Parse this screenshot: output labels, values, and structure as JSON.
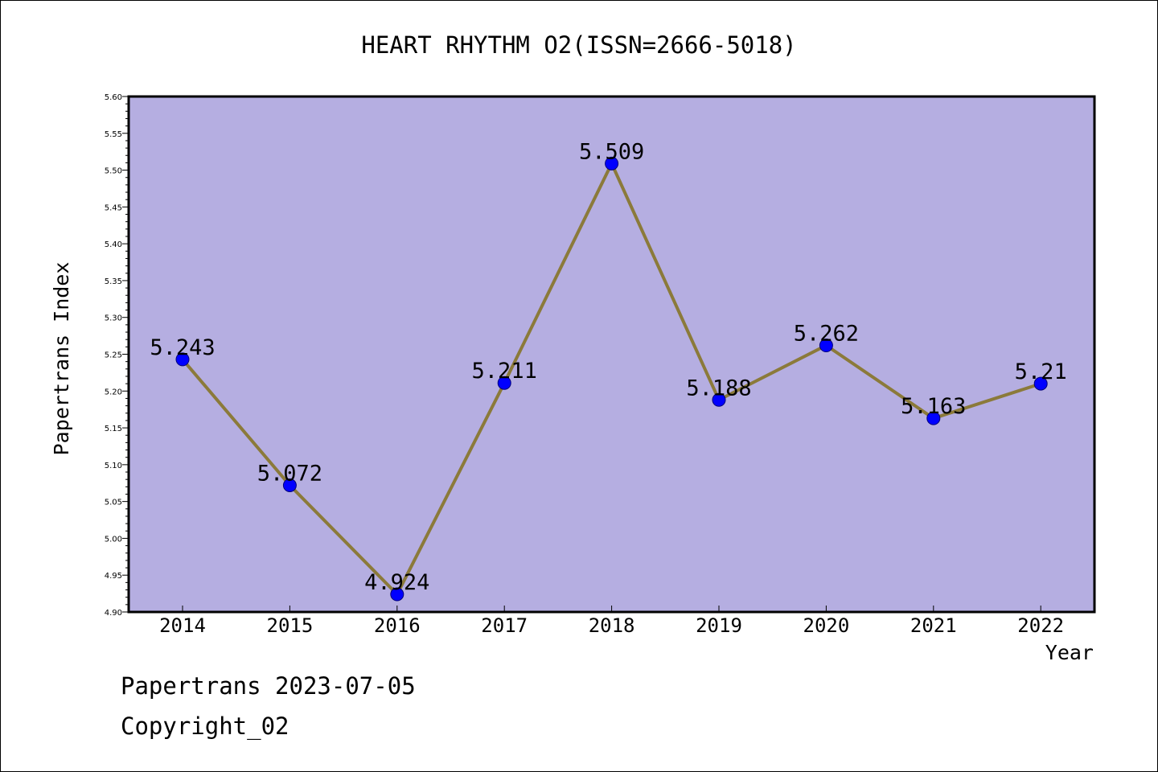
{
  "footer": {
    "line1": "Papertrans 2023-07-05",
    "line2": "Copyright_02"
  },
  "chart_data": {
    "type": "line",
    "title": "HEART RHYTHM O2(ISSN=2666-5018)",
    "xlabel": "Year",
    "ylabel": "Papertrans Index",
    "categories": [
      "2014",
      "2015",
      "2016",
      "2017",
      "2018",
      "2019",
      "2020",
      "2021",
      "2022"
    ],
    "series": [
      {
        "values": [
          5.243,
          5.072,
          4.924,
          5.211,
          5.509,
          5.188,
          5.262,
          5.163,
          5.21
        ],
        "labels": [
          "5.243",
          "5.072",
          "4.924",
          "5.211",
          "5.509",
          "5.188",
          "5.262",
          "5.163",
          "5.21"
        ]
      }
    ],
    "ylim": [
      4.9,
      5.6
    ],
    "yticks": [
      "4.90",
      "4.95",
      "5.00",
      "5.05",
      "5.10",
      "5.15",
      "5.20",
      "5.25",
      "5.30",
      "5.35",
      "5.40",
      "5.45",
      "5.50",
      "5.55",
      "5.60"
    ],
    "grid": false,
    "colors": {
      "plot_background": "#b5aee1",
      "line": "#8b7a3a",
      "marker": "#0000ff"
    }
  }
}
